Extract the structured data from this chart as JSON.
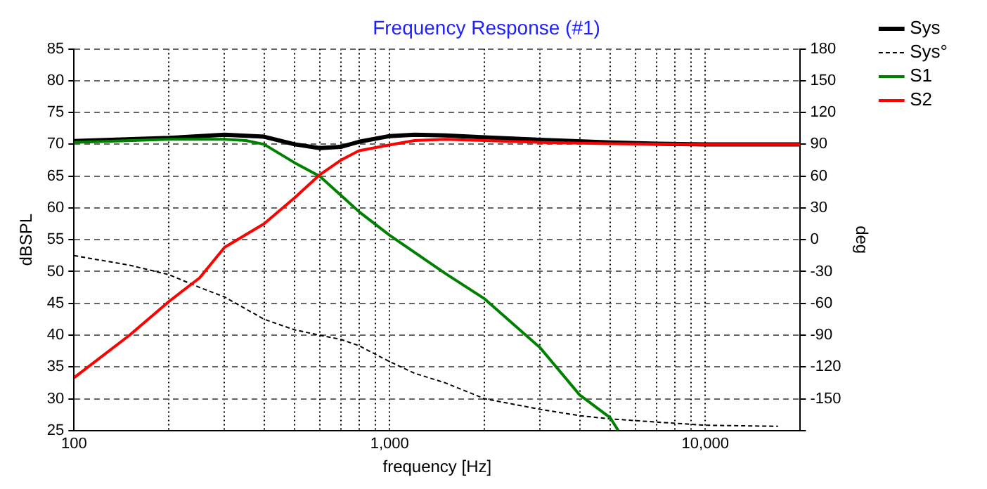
{
  "chart_data": {
    "type": "line",
    "title": "Frequency Response (#1)",
    "xlabel": "frequency [Hz]",
    "ylabel": "dBSPL",
    "y2label": "deg",
    "log": "x",
    "grid": true,
    "legend": "right",
    "xlim": [
      100,
      20000
    ],
    "xticks": [
      100,
      {
        "value": 200,
        "label": null
      },
      {
        "value": 300,
        "label": null
      },
      {
        "value": 400,
        "label": null
      },
      {
        "value": 500,
        "label": null
      },
      {
        "value": 600,
        "label": null
      },
      {
        "value": 700,
        "label": null
      },
      {
        "value": 800,
        "label": null
      },
      {
        "value": 900,
        "label": null
      },
      {
        "value": 1000,
        "label": "1,000"
      },
      {
        "value": 2000,
        "label": null
      },
      {
        "value": 3000,
        "label": null
      },
      {
        "value": 4000,
        "label": null
      },
      {
        "value": 5000,
        "label": null
      },
      {
        "value": 6000,
        "label": null
      },
      {
        "value": 7000,
        "label": null
      },
      {
        "value": 8000,
        "label": null
      },
      {
        "value": 9000,
        "label": null
      },
      {
        "value": 10000,
        "label": "10,000"
      }
    ],
    "ylim": [
      25,
      85
    ],
    "yticks": [
      25,
      30,
      35,
      40,
      45,
      50,
      55,
      60,
      65,
      70,
      75,
      80,
      85
    ],
    "y2lim": [
      -180,
      180
    ],
    "y2ticks": [
      {
        "value": -180,
        "label": null
      },
      -150,
      -120,
      -90,
      -60,
      -30,
      0,
      30,
      60,
      90,
      120,
      150,
      180
    ],
    "series": [
      {
        "name": "Sys",
        "color": "#000000",
        "x": [
          100,
          200,
          300,
          400,
          500,
          600,
          700,
          800,
          1000,
          1200,
          1500,
          2000,
          3000,
          5000,
          7000,
          10000,
          20000
        ],
        "values": [
          70.5,
          71,
          71.5,
          71.2,
          70,
          69.4,
          69.6,
          70.4,
          71.3,
          71.5,
          71.4,
          71.1,
          70.7,
          70.3,
          70.1,
          70,
          70
        ]
      },
      {
        "name": "Sys°",
        "color": "#000000",
        "axis": "y2",
        "line_style": "dashed",
        "x": [
          100,
          150,
          200,
          250,
          300,
          400,
          500,
          600,
          700,
          800,
          1000,
          1200,
          1500,
          2000,
          3000,
          4000,
          5000,
          7000,
          10000,
          17000
        ],
        "values": [
          -15,
          -24,
          -33,
          -45,
          -54,
          -75,
          -85,
          -90,
          -94,
          -100,
          -115,
          -126,
          -135,
          -150,
          -160,
          -166,
          -169,
          -172,
          -175,
          -176
        ]
      },
      {
        "name": "S1",
        "color": "#008000",
        "x": [
          100,
          200,
          300,
          350,
          400,
          500,
          600,
          700,
          800,
          1000,
          1500,
          2000,
          3000,
          4000,
          5000,
          5300
        ],
        "values": [
          70.3,
          70.8,
          70.8,
          70.6,
          70,
          67.1,
          65,
          62,
          59.4,
          55.7,
          49.7,
          45.7,
          38,
          30.6,
          27,
          25
        ]
      },
      {
        "name": "S2",
        "color": "#ff0000",
        "x": [
          100,
          150,
          200,
          250,
          300,
          400,
          500,
          600,
          700,
          800,
          1000,
          1200,
          1500,
          2000,
          3000,
          5000,
          10000,
          20000
        ],
        "values": [
          33.3,
          40,
          45.3,
          49,
          53.8,
          57.5,
          61.6,
          65.2,
          67.5,
          69,
          69.9,
          70.6,
          70.8,
          70.6,
          70.3,
          70.1,
          70,
          70
        ]
      }
    ]
  }
}
